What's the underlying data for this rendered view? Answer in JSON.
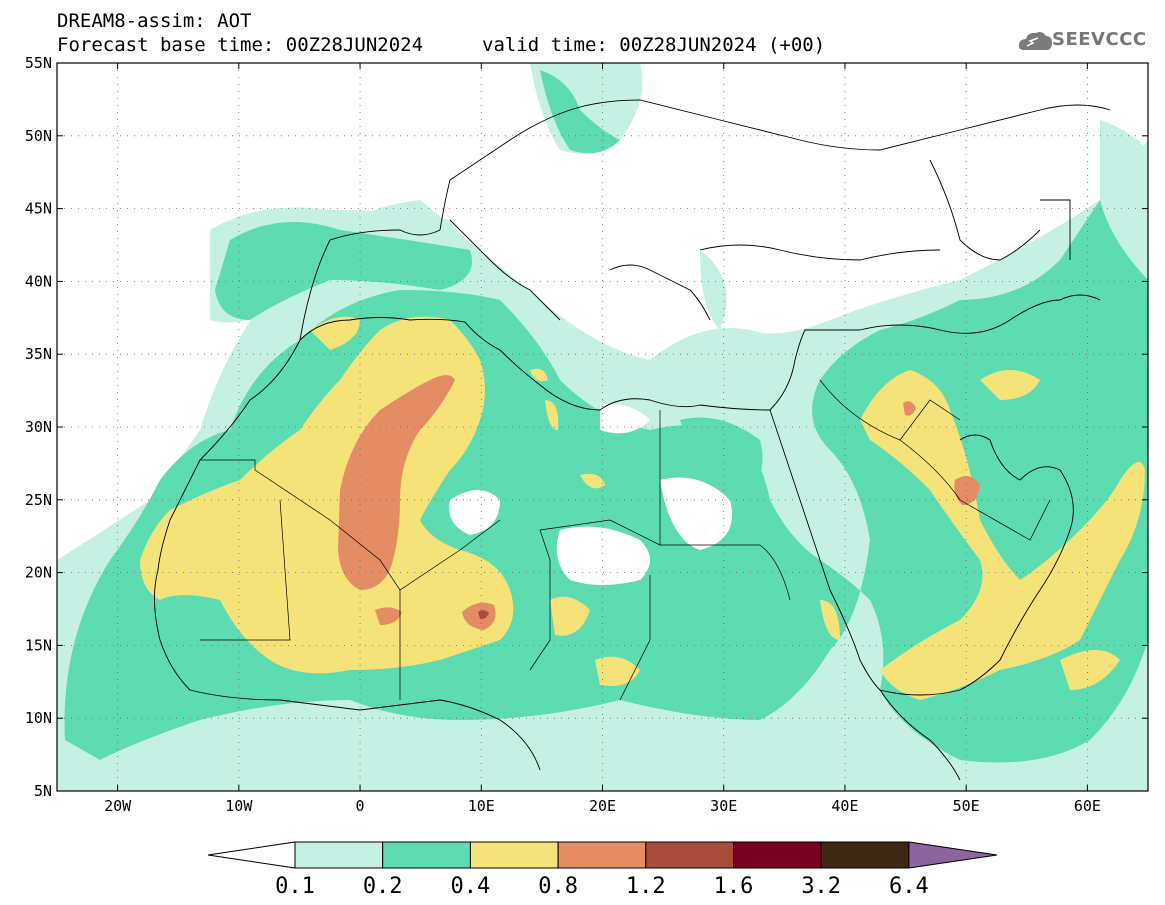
{
  "header": {
    "line1": "DREAM8-assim: AOT",
    "line2": "Forecast base time: 00Z28JUN2024",
    "line3": "valid time: 00Z28JUN2024 (+00)"
  },
  "logo": {
    "text": "SEEVCCC",
    "icon": "cloud-icon"
  },
  "map": {
    "lon_min": -25,
    "lon_max": 65,
    "lat_min": 5,
    "lat_max": 55,
    "lat_ticks": [
      {
        "value": 55,
        "label": "55N"
      },
      {
        "value": 50,
        "label": "50N"
      },
      {
        "value": 45,
        "label": "45N"
      },
      {
        "value": 40,
        "label": "40N"
      },
      {
        "value": 35,
        "label": "35N"
      },
      {
        "value": 30,
        "label": "30N"
      },
      {
        "value": 25,
        "label": "25N"
      },
      {
        "value": 20,
        "label": "20N"
      },
      {
        "value": 15,
        "label": "15N"
      },
      {
        "value": 10,
        "label": "10N"
      },
      {
        "value": 5,
        "label": "5N"
      }
    ],
    "lon_ticks": [
      {
        "value": -20,
        "label": "20W"
      },
      {
        "value": -10,
        "label": "10W"
      },
      {
        "value": 0,
        "label": "0"
      },
      {
        "value": 10,
        "label": "10E"
      },
      {
        "value": 20,
        "label": "20E"
      },
      {
        "value": 30,
        "label": "30E"
      },
      {
        "value": 40,
        "label": "40E"
      },
      {
        "value": 50,
        "label": "50E"
      },
      {
        "value": 60,
        "label": "60E"
      }
    ],
    "grid": "dotted"
  },
  "colorbar": {
    "labels": [
      "0.1",
      "0.2",
      "0.4",
      "0.8",
      "1.2",
      "1.6",
      "3.2",
      "6.4"
    ],
    "colors": [
      "#ffffff",
      "#c5f0e4",
      "#5cdcb0",
      "#f5e37a",
      "#e48c64",
      "#a84c3c",
      "#780020",
      "#3c2814",
      "#8c64a0"
    ]
  }
}
